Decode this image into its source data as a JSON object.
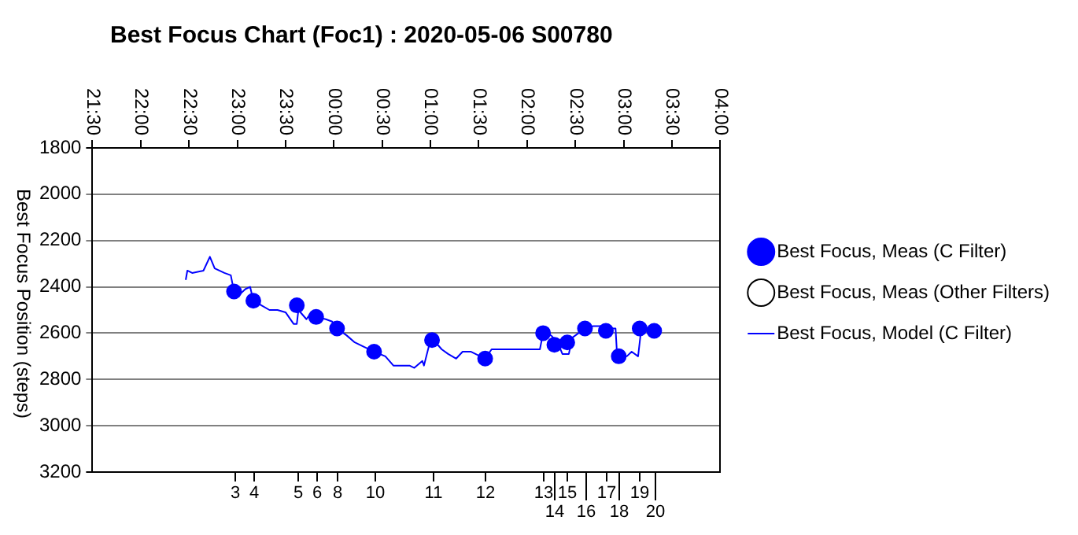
{
  "chart_data": {
    "type": "scatter",
    "title": "Best Focus Chart (Foc1) : 2020-05-06 S00780",
    "ylabel": "Best Focus Position (steps)",
    "xlim": [
      "2020-05-06T21:30",
      "2020-05-07T04:00"
    ],
    "xticks": [
      {
        "value": "2020-05-06T21:30",
        "label": "21:30"
      },
      {
        "value": "2020-05-06T22:00",
        "label": "22:00"
      },
      {
        "value": "2020-05-06T22:30",
        "label": "22:30"
      },
      {
        "value": "2020-05-06T23:00",
        "label": "23:00"
      },
      {
        "value": "2020-05-06T23:30",
        "label": "23:30"
      },
      {
        "value": "2020-05-07T00:00",
        "label": "00:00"
      },
      {
        "value": "2020-05-07T00:30",
        "label": "00:30"
      },
      {
        "value": "2020-05-07T01:00",
        "label": "01:00"
      },
      {
        "value": "2020-05-07T01:30",
        "label": "01:30"
      },
      {
        "value": "2020-05-07T02:00",
        "label": "02:00"
      },
      {
        "value": "2020-05-07T02:30",
        "label": "02:30"
      },
      {
        "value": "2020-05-07T03:00",
        "label": "03:00"
      },
      {
        "value": "2020-05-07T03:30",
        "label": "03:30"
      },
      {
        "value": "2020-05-07T04:00",
        "label": "04:00"
      }
    ],
    "ylim": [
      3200,
      1800
    ],
    "yticks": [
      1800,
      2000,
      2200,
      2400,
      2600,
      2800,
      3000,
      3200
    ],
    "grid": "y",
    "legend": "right",
    "annotations": [
      "3",
      "4",
      "5",
      "6",
      "8",
      "10",
      "11",
      "12",
      "13",
      "14",
      "15",
      "16",
      "17",
      "18",
      "19",
      "20"
    ],
    "series": [
      {
        "name": "Best Focus, Meas (C Filter)",
        "type": "scatter",
        "marker": "circle",
        "color": "#0000ff",
        "x": [
          "2020-05-06T22:58",
          "2020-05-06T23:10",
          "2020-05-06T23:37",
          "2020-05-06T23:49",
          "2020-05-07T00:02",
          "2020-05-07T00:25",
          "2020-05-07T01:01",
          "2020-05-07T01:34",
          "2020-05-07T02:10",
          "2020-05-07T02:17",
          "2020-05-07T02:25",
          "2020-05-07T02:36",
          "2020-05-07T02:49",
          "2020-05-07T02:57",
          "2020-05-07T03:10",
          "2020-05-07T03:19"
        ],
        "values": [
          2420,
          2460,
          2480,
          2530,
          2580,
          2680,
          2630,
          2710,
          2600,
          2650,
          2640,
          2580,
          2590,
          2700,
          2580,
          2590
        ]
      },
      {
        "name": "Best Focus, Meas (Other Filters)",
        "type": "scatter",
        "marker": "circle",
        "color": "#000000"
      },
      {
        "name": "Best Focus, Model (C Filter)",
        "type": "line",
        "marker": "none",
        "color": "#0000ff",
        "x": [
          "2020-05-06T22:28",
          "2020-05-06T22:29",
          "2020-05-06T22:32",
          "2020-05-06T22:39",
          "2020-05-06T22:43",
          "2020-05-06T22:46",
          "2020-05-06T22:52",
          "2020-05-06T22:56",
          "2020-05-06T22:58",
          "2020-05-06T23:02",
          "2020-05-06T23:05",
          "2020-05-06T23:08",
          "2020-05-06T23:10",
          "2020-05-06T23:15",
          "2020-05-06T23:20",
          "2020-05-06T23:25",
          "2020-05-06T23:30",
          "2020-05-06T23:35",
          "2020-05-06T23:37",
          "2020-05-06T23:38",
          "2020-05-06T23:43",
          "2020-05-06T23:45",
          "2020-05-06T23:49",
          "2020-05-06T23:55",
          "2020-05-06T23:59",
          "2020-05-07T00:02",
          "2020-05-07T00:08",
          "2020-05-07T00:13",
          "2020-05-07T00:19",
          "2020-05-07T00:25",
          "2020-05-07T00:32",
          "2020-05-07T00:37",
          "2020-05-07T00:47",
          "2020-05-07T00:50",
          "2020-05-07T00:55",
          "2020-05-07T00:56",
          "2020-05-07T01:00",
          "2020-05-07T01:02",
          "2020-05-07T01:07",
          "2020-05-07T01:11",
          "2020-05-07T01:16",
          "2020-05-07T01:20",
          "2020-05-07T01:25",
          "2020-05-07T01:34",
          "2020-05-07T01:38",
          "2020-05-07T02:08",
          "2020-05-07T02:10",
          "2020-05-07T02:15",
          "2020-05-07T02:19",
          "2020-05-07T02:22",
          "2020-05-07T02:26",
          "2020-05-07T02:28",
          "2020-05-07T02:34",
          "2020-05-07T02:41",
          "2020-05-07T02:47",
          "2020-05-07T02:50",
          "2020-05-07T02:55",
          "2020-05-07T02:56",
          "2020-05-07T03:02",
          "2020-05-07T03:05",
          "2020-05-07T03:09",
          "2020-05-07T03:11",
          "2020-05-07T03:15",
          "2020-05-07T03:23"
        ],
        "values": [
          2370,
          2330,
          2340,
          2330,
          2270,
          2320,
          2340,
          2350,
          2420,
          2430,
          2410,
          2400,
          2460,
          2480,
          2500,
          2500,
          2510,
          2560,
          2560,
          2500,
          2540,
          2520,
          2530,
          2540,
          2550,
          2580,
          2610,
          2640,
          2660,
          2680,
          2700,
          2740,
          2740,
          2750,
          2720,
          2740,
          2630,
          2630,
          2670,
          2690,
          2710,
          2680,
          2680,
          2710,
          2670,
          2670,
          2600,
          2610,
          2640,
          2690,
          2690,
          2620,
          2590,
          2570,
          2570,
          2580,
          2580,
          2700,
          2700,
          2680,
          2700,
          2580,
          2580,
          2580
        ]
      }
    ]
  }
}
